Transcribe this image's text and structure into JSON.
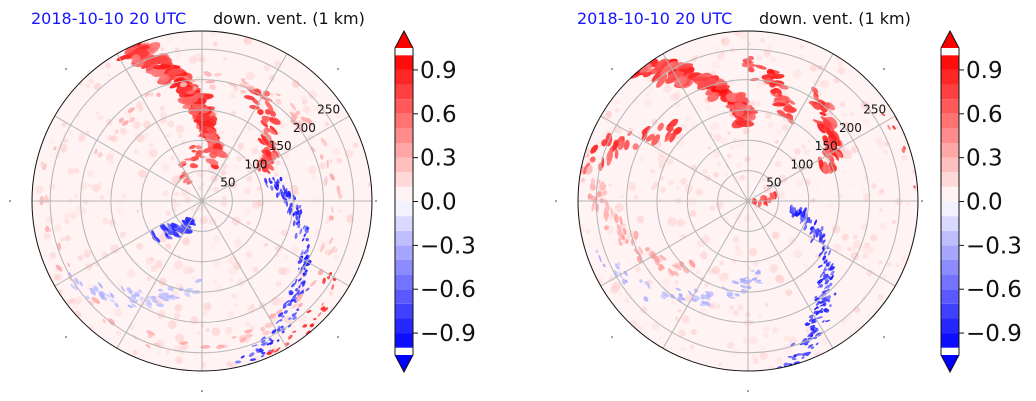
{
  "chart_data": [
    {
      "type": "heatmap",
      "projection": "polar",
      "title_left": "2018-10-10 20 UTC",
      "title_right": "down. vent. (1 km)",
      "radial_ticks": [
        50,
        100,
        150,
        200,
        250
      ],
      "grid": true,
      "colormap": "bwr",
      "colorbar_range": [
        -1.05,
        1.05
      ],
      "colorbar_ticks": [
        -0.9,
        -0.6,
        -0.3,
        0.0,
        0.3,
        0.6,
        0.9
      ],
      "colorbar_tick_labels": [
        "−0.9",
        "−0.6",
        "−0.3",
        "0.0",
        "0.3",
        "0.6",
        "0.9"
      ]
    },
    {
      "type": "heatmap",
      "projection": "polar",
      "title_left": "2018-10-10 20 UTC",
      "title_right": "down. vent. (1 km)",
      "radial_ticks": [
        50,
        100,
        150,
        200,
        250
      ],
      "grid": true,
      "colormap": "bwr",
      "colorbar_range": [
        -1.05,
        1.05
      ],
      "colorbar_ticks": [
        -0.9,
        -0.6,
        -0.3,
        0.0,
        0.3,
        0.6,
        0.9
      ],
      "colorbar_tick_labels": [
        "−0.9",
        "−0.6",
        "−0.3",
        "0.0",
        "0.3",
        "0.6",
        "0.9"
      ]
    }
  ],
  "colors": {
    "positive": "#ff0000",
    "negative": "#0000ff",
    "neutral": "#ffffff",
    "title_accent": "#1515ff"
  }
}
